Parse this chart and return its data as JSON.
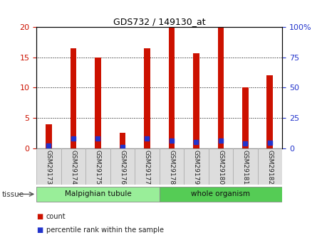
{
  "title": "GDS732 / 149130_at",
  "samples": [
    "GSM29173",
    "GSM29174",
    "GSM29175",
    "GSM29176",
    "GSM29177",
    "GSM29178",
    "GSM29179",
    "GSM29180",
    "GSM29181",
    "GSM29182"
  ],
  "counts": [
    4.0,
    16.5,
    15.0,
    2.5,
    16.5,
    20.0,
    15.7,
    20.0,
    10.0,
    12.0
  ],
  "percentiles": [
    2.2,
    8.0,
    7.9,
    1.1,
    8.1,
    6.2,
    5.0,
    6.0,
    4.0,
    4.7
  ],
  "bar_color": "#cc1100",
  "dot_color": "#2233cc",
  "left_ylim": [
    0,
    20
  ],
  "right_ylim": [
    0,
    100
  ],
  "left_yticks": [
    0,
    5,
    10,
    15,
    20
  ],
  "right_yticks": [
    0,
    25,
    50,
    75,
    100
  ],
  "right_yticklabels": [
    "0",
    "25",
    "50",
    "75",
    "100%"
  ],
  "grid_color": "#000000",
  "tissue_groups": [
    {
      "label": "Malpighian tubule",
      "start": 0,
      "end": 5,
      "color": "#99ee99"
    },
    {
      "label": "whole organism",
      "start": 5,
      "end": 10,
      "color": "#55cc55"
    }
  ],
  "tissue_label": "tissue",
  "bar_width": 0.25,
  "dot_size": 18,
  "left_tick_color": "#cc1100",
  "right_tick_color": "#2233cc",
  "xlabel_rotation": 270,
  "background_color": "#ffffff",
  "plot_bg_color": "#ffffff",
  "legend_count_label": "count",
  "legend_pct_label": "percentile rank within the sample",
  "tick_label_bg": "#dddddd"
}
